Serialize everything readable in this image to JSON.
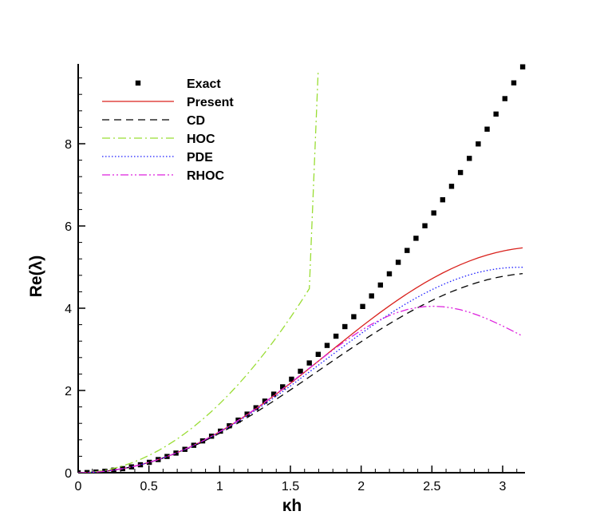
{
  "chart_data": {
    "type": "line",
    "title": "",
    "xlabel": "κh",
    "ylabel": "Re(λ)",
    "xlim": [
      0,
      3.14159
    ],
    "ylim": [
      0,
      9.9
    ],
    "x_ticks": [
      0,
      0.5,
      1,
      1.5,
      2,
      2.5,
      3
    ],
    "x_tick_labels": [
      "0",
      "0.5",
      "1",
      "1.5",
      "2",
      "2.5",
      "3"
    ],
    "y_ticks": [
      0,
      2,
      4,
      6,
      8
    ],
    "y_tick_labels": [
      "0",
      "2",
      "4",
      "6",
      "8"
    ],
    "legend_position": "top-left",
    "series": [
      {
        "name": "Exact",
        "style": "markers",
        "marker": "square",
        "color": "#000000",
        "x": [
          0.0,
          0.0628,
          0.1257,
          0.1885,
          0.2513,
          0.3142,
          0.377,
          0.4398,
          0.5027,
          0.5655,
          0.6283,
          0.6912,
          0.754,
          0.8168,
          0.8796,
          0.9425,
          1.0053,
          1.0681,
          1.131,
          1.1938,
          1.2566,
          1.3195,
          1.3823,
          1.4451,
          1.508,
          1.5708,
          1.6336,
          1.6965,
          1.7593,
          1.8221,
          1.885,
          1.9478,
          2.0106,
          2.0735,
          2.1363,
          2.1991,
          2.2619,
          2.3248,
          2.3876,
          2.4504,
          2.5133,
          2.5761,
          2.6389,
          2.7018,
          2.7646,
          2.8274,
          2.8903,
          2.9531,
          3.0159,
          3.0788,
          3.1416
        ],
        "y": [
          0.0,
          0.0039,
          0.0158,
          0.0355,
          0.0632,
          0.0987,
          0.1421,
          0.1934,
          0.2527,
          0.3198,
          0.3948,
          0.4777,
          0.5685,
          0.6672,
          0.7738,
          0.8883,
          1.0106,
          1.1409,
          1.2791,
          1.4251,
          1.5791,
          1.741,
          1.9107,
          2.0884,
          2.2739,
          2.4674,
          2.6687,
          2.8779,
          3.0951,
          3.3201,
          3.5531,
          3.7939,
          4.0427,
          4.2993,
          4.5638,
          4.8362,
          5.1166,
          5.4048,
          5.7009,
          6.005,
          6.3169,
          6.6367,
          6.9644,
          7.3,
          7.6436,
          7.995,
          8.3543,
          8.7216,
          9.0967,
          9.4797,
          9.8696
        ]
      },
      {
        "name": "Present",
        "style": "solid",
        "color": "#d9211c",
        "x": [
          0.0,
          0.0628,
          0.1257,
          0.1885,
          0.2513,
          0.3142,
          0.377,
          0.4398,
          0.5027,
          0.5655,
          0.6283,
          0.6912,
          0.754,
          0.8168,
          0.8796,
          0.9425,
          1.0053,
          1.0681,
          1.131,
          1.1938,
          1.2566,
          1.3195,
          1.3823,
          1.4451,
          1.508,
          1.5708,
          1.6336,
          1.6965,
          1.7593,
          1.8221,
          1.885,
          1.9478,
          2.0106,
          2.0735,
          2.1363,
          2.1991,
          2.2619,
          2.3248,
          2.3876,
          2.4504,
          2.5133,
          2.5761,
          2.6389,
          2.7018,
          2.7646,
          2.8274,
          2.8903,
          2.9531,
          3.0159,
          3.0788,
          3.1416
        ],
        "y": [
          0.0,
          0.0039,
          0.0158,
          0.0355,
          0.0632,
          0.0987,
          0.1421,
          0.1934,
          0.2526,
          0.3197,
          0.3946,
          0.4773,
          0.5678,
          0.666,
          0.7718,
          0.885,
          1.0055,
          1.1331,
          1.2675,
          1.4084,
          1.5554,
          1.7082,
          1.8661,
          2.0286,
          2.1951,
          2.3648,
          2.5371,
          2.711,
          2.8857,
          3.0603,
          3.2339,
          3.4056,
          3.5746,
          3.7401,
          3.9013,
          4.0575,
          4.208,
          4.3523,
          4.4898,
          4.62,
          4.7425,
          4.8568,
          4.9625,
          5.0594,
          5.147,
          5.2253,
          5.2939,
          5.3527,
          5.4014,
          5.4399,
          5.4679
        ]
      },
      {
        "name": "CD",
        "style": "dashed",
        "color": "#000000",
        "x": [
          0.0,
          0.0628,
          0.1257,
          0.1885,
          0.2513,
          0.3142,
          0.377,
          0.4398,
          0.5027,
          0.5655,
          0.6283,
          0.6912,
          0.754,
          0.8168,
          0.8796,
          0.9425,
          1.0053,
          1.0681,
          1.131,
          1.1938,
          1.2566,
          1.3195,
          1.3823,
          1.4451,
          1.508,
          1.5708,
          1.6336,
          1.6965,
          1.7593,
          1.8221,
          1.885,
          1.9478,
          2.0106,
          2.0735,
          2.1363,
          2.1991,
          2.2619,
          2.3248,
          2.3876,
          2.4504,
          2.5133,
          2.5761,
          2.6389,
          2.7018,
          2.7646,
          2.8274,
          2.8903,
          2.9531,
          3.0159,
          3.0788,
          3.1416
        ],
        "y": [
          0.0,
          0.0039,
          0.0158,
          0.0355,
          0.063,
          0.0984,
          0.1414,
          0.1921,
          0.2503,
          0.3159,
          0.3889,
          0.469,
          0.5561,
          0.6499,
          0.7503,
          0.8568,
          0.9691,
          1.0871,
          1.2102,
          1.3381,
          1.4703,
          1.6064,
          1.7459,
          1.8882,
          2.0329,
          2.1796,
          2.3275,
          2.4762,
          2.625,
          2.7734,
          2.9207,
          3.0663,
          3.2098,
          3.3505,
          3.4877,
          3.6211,
          3.75,
          3.8739,
          3.9923,
          4.1047,
          4.2107,
          4.3099,
          4.4019,
          4.4863,
          4.5628,
          4.6311,
          4.6909,
          4.7421,
          4.7843,
          4.8175,
          4.8415
        ]
      },
      {
        "name": "HOC",
        "style": "dash-dot",
        "color": "#99dd33",
        "x": [
          0.0,
          0.0628,
          0.1257,
          0.1885,
          0.2513,
          0.3142,
          0.377,
          0.4398,
          0.5027,
          0.5655,
          0.6283,
          0.6912,
          0.754,
          0.8168,
          0.8796,
          0.9425,
          1.0053,
          1.0681,
          1.131,
          1.1938,
          1.2566,
          1.3195,
          1.3823,
          1.4451,
          1.508,
          1.5708,
          1.6336,
          1.6965
        ],
        "y": [
          0.0,
          0.0066,
          0.0265,
          0.0596,
          0.106,
          0.1656,
          0.2384,
          0.3245,
          0.4238,
          0.5364,
          0.6622,
          0.8012,
          0.9535,
          1.119,
          1.2977,
          1.4897,
          1.6949,
          1.9134,
          2.1451,
          2.39,
          2.6482,
          2.9196,
          3.2042,
          3.5021,
          3.8133,
          4.1377,
          4.4754,
          9.8
        ]
      },
      {
        "name": "PDE",
        "style": "dotted",
        "color": "#1a1aff",
        "x": [
          0.0,
          0.0628,
          0.1257,
          0.1885,
          0.2513,
          0.3142,
          0.377,
          0.4398,
          0.5027,
          0.5655,
          0.6283,
          0.6912,
          0.754,
          0.8168,
          0.8796,
          0.9425,
          1.0053,
          1.0681,
          1.131,
          1.1938,
          1.2566,
          1.3195,
          1.3823,
          1.4451,
          1.508,
          1.5708,
          1.6336,
          1.6965,
          1.7593,
          1.8221,
          1.885,
          1.9478,
          2.0106,
          2.0735,
          2.1363,
          2.1991,
          2.2619,
          2.3248,
          2.3876,
          2.4504,
          2.5133,
          2.5761,
          2.6389,
          2.7018,
          2.7646,
          2.8274,
          2.8903,
          2.9531,
          3.0159,
          3.0788,
          3.1416
        ],
        "y": [
          0.0,
          0.0039,
          0.0158,
          0.0355,
          0.0632,
          0.0987,
          0.1421,
          0.1933,
          0.2524,
          0.3193,
          0.3938,
          0.476,
          0.5656,
          0.6626,
          0.7667,
          0.8777,
          0.9954,
          1.1193,
          1.2494,
          1.385,
          1.5258,
          1.6713,
          1.821,
          1.9744,
          2.1308,
          2.2897,
          2.4504,
          2.6121,
          2.7742,
          2.9359,
          3.0965,
          3.2552,
          3.4111,
          3.5636,
          3.7119,
          3.8553,
          3.9929,
          4.1242,
          4.2484,
          4.3649,
          4.473,
          4.5723,
          4.6622,
          4.7421,
          4.8117,
          4.8706,
          4.9185,
          4.9551,
          4.9804,
          4.9941,
          4.9963
        ]
      },
      {
        "name": "RHOC",
        "style": "dash-dot-dot",
        "color": "#dd22dd",
        "x": [
          0.0,
          0.0628,
          0.1257,
          0.1885,
          0.2513,
          0.3142,
          0.377,
          0.4398,
          0.5027,
          0.5655,
          0.6283,
          0.6912,
          0.754,
          0.8168,
          0.8796,
          0.9425,
          1.0053,
          1.0681,
          1.131,
          1.1938,
          1.2566,
          1.3195,
          1.3823,
          1.4451,
          1.508,
          1.5708,
          1.6336,
          1.6965,
          1.7593,
          1.8221,
          1.885,
          1.9478,
          2.0106,
          2.0735,
          2.1363,
          2.1991,
          2.2619,
          2.3248,
          2.3876,
          2.4504,
          2.5133,
          2.5761,
          2.6389,
          2.7018,
          2.7646,
          2.8274,
          2.8903,
          2.9531,
          3.0159,
          3.0788,
          3.1416
        ],
        "y": [
          0.0,
          0.0039,
          0.0158,
          0.0355,
          0.0632,
          0.0987,
          0.1421,
          0.1934,
          0.2526,
          0.3197,
          0.3947,
          0.4776,
          0.5683,
          0.6668,
          0.773,
          0.8869,
          1.0083,
          1.1369,
          1.2725,
          1.4147,
          1.5631,
          1.7172,
          1.8762,
          2.0393,
          2.2055,
          2.3738,
          2.5428,
          2.7111,
          2.8771,
          3.0391,
          3.1953,
          3.3437,
          3.4825,
          3.6096,
          3.7232,
          3.8216,
          3.9034,
          3.9675,
          4.0131,
          4.0399,
          4.0477,
          4.037,
          4.0083,
          3.9629,
          3.902,
          3.8275,
          3.7411,
          3.6451,
          3.5416,
          3.433,
          3.3213
        ]
      }
    ]
  }
}
